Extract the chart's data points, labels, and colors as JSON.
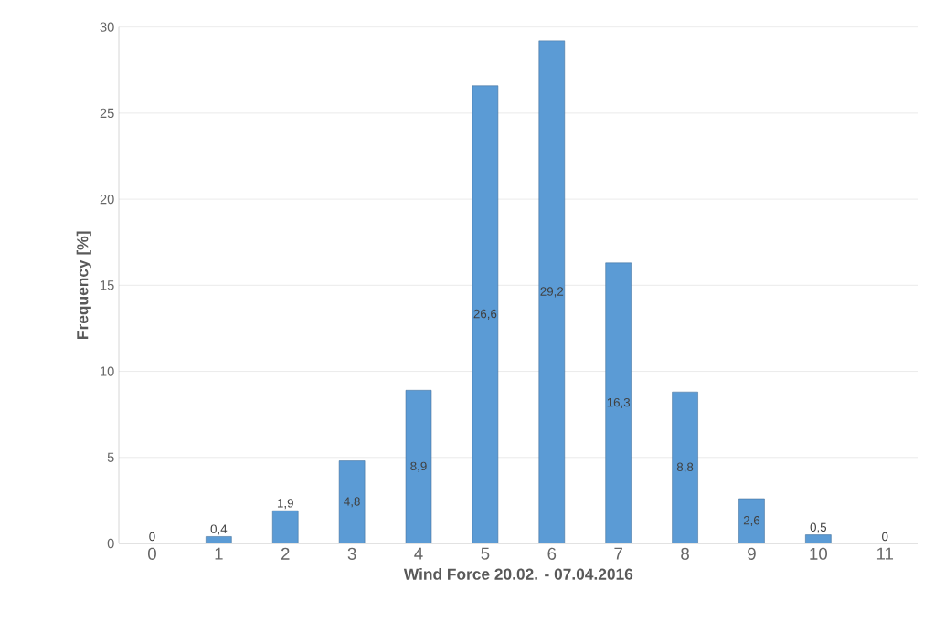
{
  "chart_data": {
    "type": "bar",
    "xlabel": "Wind Force 20.02. - 07.04.2016",
    "ylabel": "Frequency [%]",
    "categories": [
      "0",
      "1",
      "2",
      "3",
      "4",
      "5",
      "6",
      "7",
      "8",
      "9",
      "10",
      "11"
    ],
    "values": [
      0,
      0.4,
      1.9,
      4.8,
      8.9,
      26.6,
      29.2,
      16.3,
      8.8,
      2.6,
      0.5,
      0
    ],
    "value_labels": [
      "0",
      "0,4",
      "1,9",
      "4,8",
      "8,9",
      "26,6",
      "29,2",
      "16,3",
      "8,8",
      "2,6",
      "0,5",
      "0"
    ],
    "color": "#5b9bd5",
    "ylim": [
      0,
      30
    ],
    "yticks": [
      0,
      5,
      10,
      15,
      20,
      25,
      30
    ],
    "grid": "y"
  }
}
